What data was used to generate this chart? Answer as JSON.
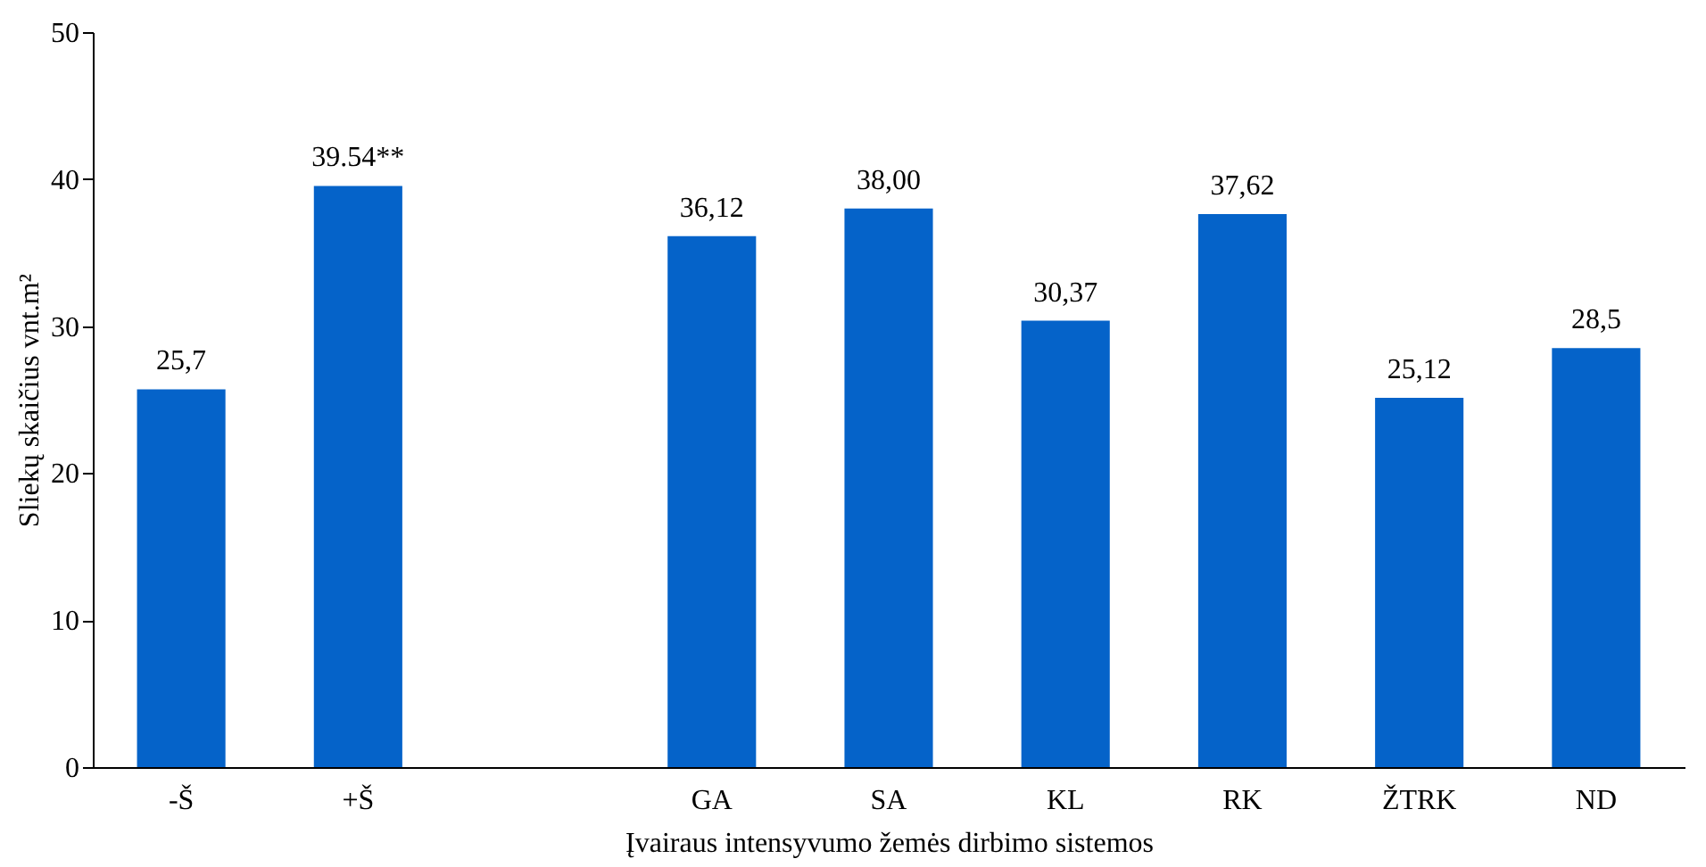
{
  "chart_data": {
    "type": "bar",
    "xlabel": "Įvairaus intensyvumo žemės dirbimo sistemos",
    "ylabel": "Sliekų skaičius vnt.m²",
    "categories": [
      "-Š",
      "+Š",
      null,
      "GA",
      "SA",
      "KL",
      "RK",
      "ŽTRK",
      "ND"
    ],
    "values": [
      25.7,
      39.54,
      null,
      36.12,
      38.0,
      30.37,
      37.62,
      25.12,
      28.5
    ],
    "value_labels": [
      "25,7",
      "39.54**",
      null,
      "36,12",
      "38,00",
      "30,37",
      "37,62",
      "25,12",
      "28,5"
    ],
    "color": "#0563c9",
    "ylim": [
      0,
      50
    ],
    "yticks": [
      0,
      10,
      20,
      30,
      40,
      50
    ],
    "grid": false
  }
}
